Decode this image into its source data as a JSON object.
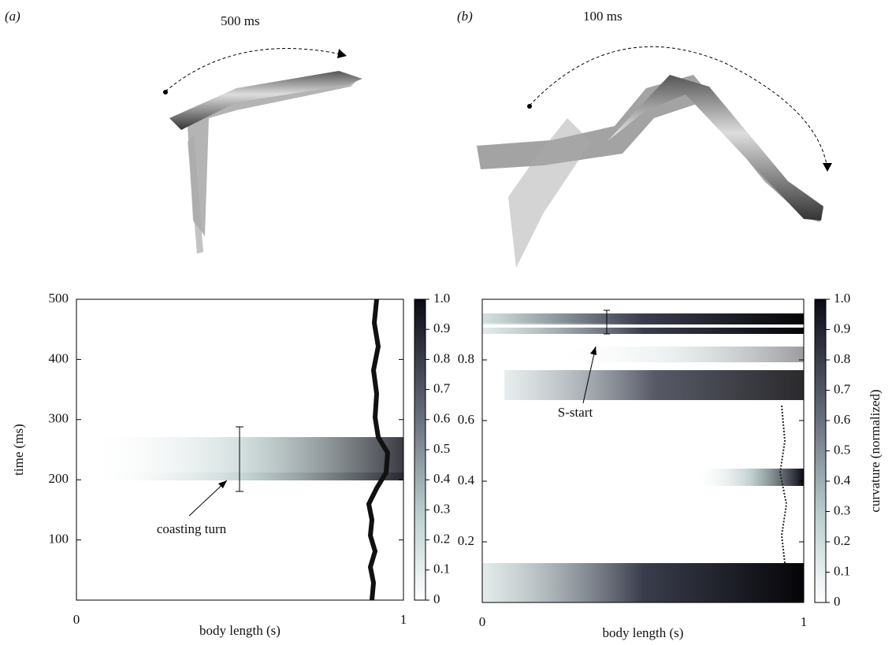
{
  "chart_data": [
    {
      "type": "heatmap",
      "panel": "(a)",
      "duration": "500 ms",
      "annotation": "coasting turn",
      "x_label": "body length (s)",
      "y_label": "time (ms)",
      "xlim": [
        0,
        1
      ],
      "xticks": [
        0,
        1
      ],
      "ylim": [
        0,
        500
      ],
      "yticks": [
        100,
        200,
        300,
        400,
        500
      ],
      "colorbar_lim": [
        0,
        1
      ],
      "colorbar_ticks": [
        0,
        0.1,
        0.2,
        0.3,
        0.4,
        0.5,
        0.6,
        0.7,
        0.8,
        0.9,
        {
          "value": 1,
          "label": "1.0"
        }
      ]
    },
    {
      "type": "heatmap",
      "panel": "(b)",
      "duration": "100 ms",
      "annotation": "S-start",
      "x_label": "body length (s)",
      "colorbar_label": "curvature (normalized)",
      "xlim": [
        0,
        1
      ],
      "xticks": [
        0,
        1
      ],
      "ylim": [
        0,
        1
      ],
      "yticks": [
        0.2,
        0.4,
        0.6,
        0.8
      ],
      "colorbar_lim": [
        0,
        1
      ],
      "colorbar_ticks": [
        0,
        0.1,
        0.2,
        0.3,
        0.4,
        0.5,
        0.6,
        0.7,
        0.8,
        0.9,
        {
          "value": 1,
          "label": "1.0"
        }
      ]
    }
  ]
}
